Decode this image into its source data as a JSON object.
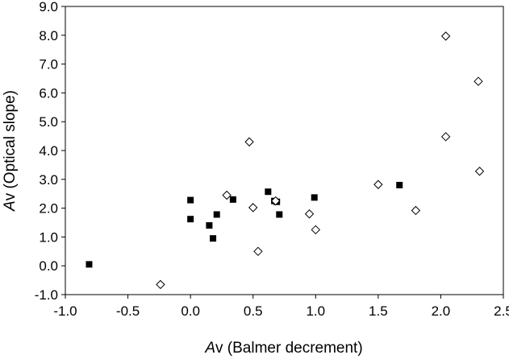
{
  "chart_data": {
    "type": "scatter",
    "title": "",
    "xlabel_italic": "A",
    "xlabel_rest": "v (Balmer decrement)",
    "ylabel_italic": "A",
    "ylabel_rest": "v (Optical slope)",
    "xlim": [
      -1.0,
      2.5
    ],
    "ylim": [
      -1.0,
      9.0
    ],
    "x_ticks": [
      "-1.0",
      "-0.5",
      "0.0",
      "0.5",
      "1.0",
      "1.5",
      "2.0",
      "2.5"
    ],
    "y_ticks": [
      "-1.0",
      "0.0",
      "1.0",
      "2.0",
      "3.0",
      "4.0",
      "5.0",
      "6.0",
      "7.0",
      "8.0",
      "9.0"
    ],
    "grid": false,
    "legend": "none",
    "colors": {
      "filled": "#000000",
      "open": "#000000",
      "background": "#ffffff"
    },
    "series": [
      {
        "marker": "filled-square",
        "points": [
          [
            -0.81,
            0.05
          ],
          [
            0.0,
            2.28
          ],
          [
            0.0,
            1.62
          ],
          [
            0.15,
            1.4
          ],
          [
            0.18,
            0.95
          ],
          [
            0.21,
            1.78
          ],
          [
            0.34,
            2.3
          ],
          [
            0.62,
            2.57
          ],
          [
            0.67,
            2.25
          ],
          [
            0.69,
            2.22
          ],
          [
            0.71,
            1.78
          ],
          [
            0.99,
            2.37
          ],
          [
            1.67,
            2.8
          ]
        ]
      },
      {
        "marker": "open-diamond",
        "points": [
          [
            -0.24,
            -0.65
          ],
          [
            0.29,
            2.45
          ],
          [
            0.47,
            4.3
          ],
          [
            0.5,
            2.02
          ],
          [
            0.54,
            0.5
          ],
          [
            0.68,
            2.25
          ],
          [
            0.95,
            1.8
          ],
          [
            1.0,
            1.25
          ],
          [
            1.5,
            2.82
          ],
          [
            1.8,
            1.92
          ],
          [
            2.04,
            4.48
          ],
          [
            2.04,
            7.97
          ],
          [
            2.3,
            6.4
          ],
          [
            2.31,
            3.28
          ]
        ]
      }
    ]
  }
}
